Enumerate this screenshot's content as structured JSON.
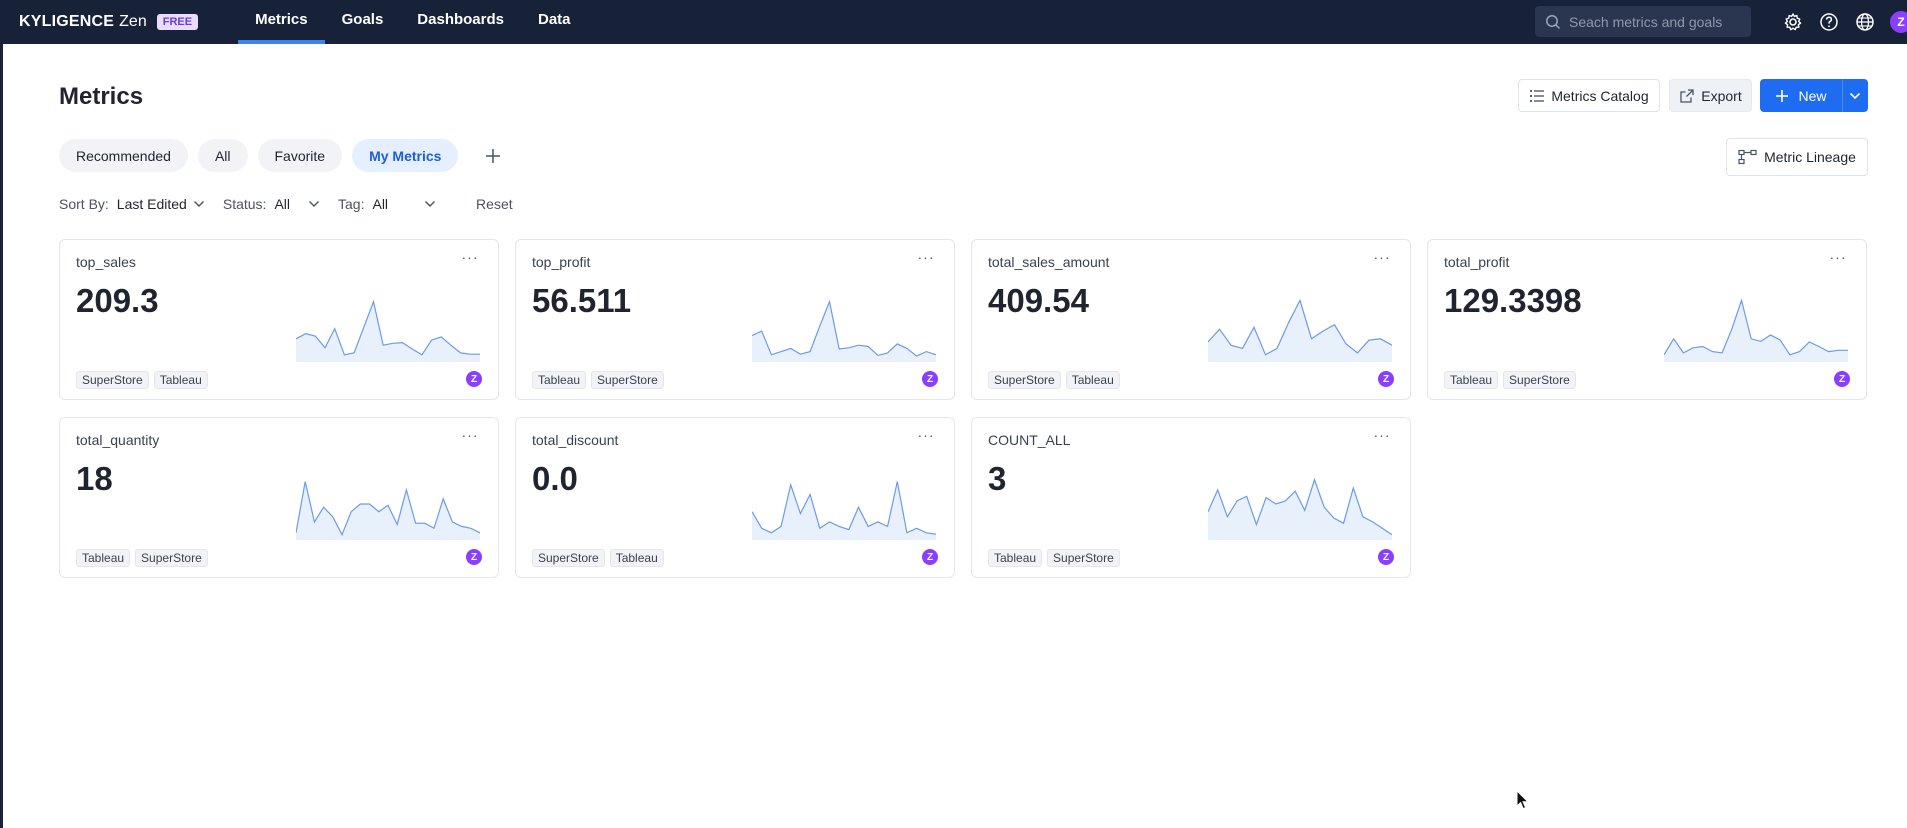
{
  "brand": {
    "name": "KYLIGENCE",
    "suffix": "Zen",
    "badge": "FREE"
  },
  "nav": [
    {
      "label": "Metrics",
      "active": true
    },
    {
      "label": "Goals",
      "active": false
    },
    {
      "label": "Dashboards",
      "active": false
    },
    {
      "label": "Data",
      "active": false
    }
  ],
  "search": {
    "placeholder": "Seach metrics and goals"
  },
  "user": {
    "initial": "Z"
  },
  "page": {
    "title": "Metrics"
  },
  "actions": {
    "catalog": "Metrics Catalog",
    "export": "Export",
    "new": "New",
    "lineage": "Metric Lineage"
  },
  "tabs": [
    {
      "label": "Recommended",
      "active": false
    },
    {
      "label": "All",
      "active": false
    },
    {
      "label": "Favorite",
      "active": false
    },
    {
      "label": "My Metrics",
      "active": true
    }
  ],
  "filters": {
    "sort_label": "Sort By:",
    "sort_value": "Last Edited",
    "status_label": "Status:",
    "status_value": "All",
    "tag_label": "Tag:",
    "tag_value": "All",
    "reset": "Reset"
  },
  "colors": {
    "accent": "#1d6cf2",
    "nav_bg": "#172238",
    "spark_line": "#6b9be8",
    "avatar": "#8a3ffc"
  },
  "metrics": [
    {
      "name": "top_sales",
      "value": "209.3",
      "tags": [
        "SuperStore",
        "Tableau"
      ],
      "owner": "Z",
      "trend": [
        30,
        38,
        34,
        16,
        46,
        5,
        8,
        48,
        88,
        20,
        23,
        24,
        14,
        5,
        28,
        33,
        20,
        8,
        6,
        6
      ]
    },
    {
      "name": "top_profit",
      "value": "56.511",
      "tags": [
        "Tableau",
        "SuperStore"
      ],
      "owner": "Z",
      "trend": [
        35,
        42,
        5,
        10,
        15,
        6,
        10,
        50,
        88,
        14,
        16,
        20,
        18,
        4,
        8,
        22,
        15,
        3,
        10,
        5
      ]
    },
    {
      "name": "total_sales_amount",
      "value": "409.54",
      "tags": [
        "SuperStore",
        "Tableau"
      ],
      "owner": "Z",
      "trend": [
        25,
        45,
        20,
        15,
        48,
        5,
        15,
        55,
        90,
        30,
        42,
        52,
        22,
        8,
        28,
        30,
        20
      ]
    },
    {
      "name": "total_profit",
      "value": "129.3398",
      "tags": [
        "Tableau",
        "SuperStore"
      ],
      "owner": "Z",
      "trend": [
        5,
        30,
        8,
        16,
        18,
        10,
        8,
        45,
        90,
        30,
        26,
        36,
        28,
        5,
        10,
        25,
        18,
        10,
        12,
        12
      ]
    },
    {
      "name": "total_quantity",
      "value": "18",
      "tags": [
        "Tableau",
        "SuperStore"
      ],
      "owner": "Z",
      "trend": [
        5,
        85,
        22,
        45,
        30,
        2,
        38,
        50,
        50,
        38,
        48,
        18,
        72,
        20,
        20,
        12,
        58,
        22,
        15,
        12,
        5
      ]
    },
    {
      "name": "total_discount",
      "value": "0.0",
      "tags": [
        "SuperStore",
        "Tableau"
      ],
      "owner": "Z",
      "trend": [
        38,
        12,
        5,
        15,
        80,
        35,
        65,
        12,
        22,
        15,
        10,
        45,
        15,
        22,
        15,
        85,
        5,
        12,
        5,
        3
      ]
    },
    {
      "name": "COUNT_ALL",
      "value": "3",
      "tags": [
        "Tableau",
        "SuperStore"
      ],
      "owner": "Z",
      "trend": [
        38,
        72,
        30,
        55,
        62,
        18,
        60,
        50,
        55,
        70,
        40,
        88,
        45,
        28,
        20,
        75,
        30,
        22,
        12,
        2
      ]
    }
  ]
}
